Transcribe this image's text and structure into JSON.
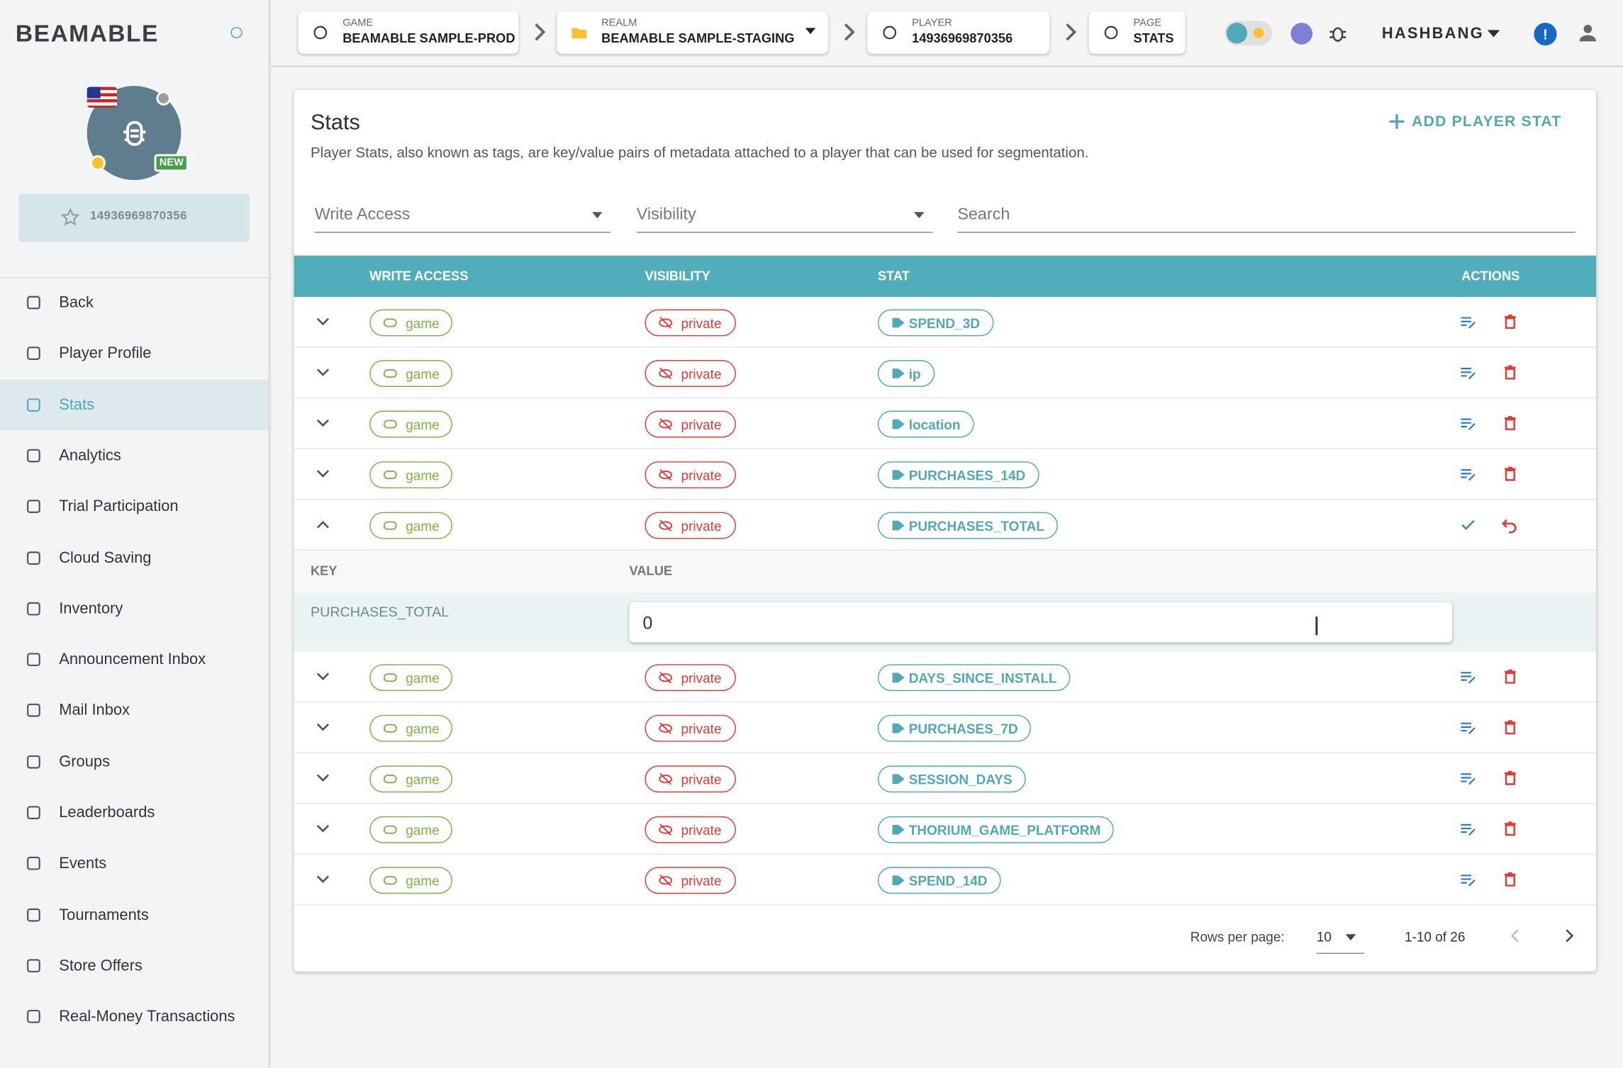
{
  "brand": "BEAMABLE",
  "sidebar": {
    "badge": "NEW",
    "player_id": "14936969870356",
    "nav": [
      {
        "label": "Back"
      },
      {
        "label": "Player Profile"
      },
      {
        "label": "Stats",
        "active": true
      },
      {
        "label": "Analytics"
      },
      {
        "label": "Trial Participation"
      },
      {
        "label": "Cloud Saving"
      },
      {
        "label": "Inventory"
      },
      {
        "label": "Announcement Inbox"
      },
      {
        "label": "Mail Inbox"
      },
      {
        "label": "Groups"
      },
      {
        "label": "Leaderboards"
      },
      {
        "label": "Events"
      },
      {
        "label": "Tournaments"
      },
      {
        "label": "Store Offers"
      },
      {
        "label": "Real-Money Transactions"
      }
    ]
  },
  "breadcrumbs": [
    {
      "label": "GAME",
      "value": "BEAMABLE SAMPLE-PROD"
    },
    {
      "label": "REALM",
      "value": "BEAMABLE SAMPLE-STAGING"
    },
    {
      "label": "PLAYER",
      "value": "14936969870356"
    },
    {
      "label": "PAGE",
      "value": "STATS"
    }
  ],
  "user": "HASHBANG",
  "panel": {
    "title": "Stats",
    "description": "Player Stats, also known as tags, are key/value pairs of metadata attached to a player that can be used for segmentation.",
    "add_button": "ADD PLAYER STAT",
    "filters": [
      "Write Access",
      "Visibility",
      "Search"
    ],
    "table": {
      "headers": [
        "WRITE ACCESS",
        "VISIBILITY",
        "STAT",
        "ACTIONS"
      ],
      "rows": [
        {
          "access": "game",
          "visibility": "private",
          "stat": "SPEND_3D"
        },
        {
          "access": "game",
          "visibility": "private",
          "stat": "ip"
        },
        {
          "access": "game",
          "visibility": "private",
          "stat": "location"
        },
        {
          "access": "game",
          "visibility": "private",
          "stat": "PURCHASES_14D"
        },
        {
          "access": "game",
          "visibility": "private",
          "stat": "PURCHASES_TOTAL",
          "expanded": true,
          "detail": {
            "key_header": "KEY",
            "value_header": "VALUE",
            "key": "PURCHASES_TOTAL",
            "value": "0"
          }
        },
        {
          "access": "game",
          "visibility": "private",
          "stat": "DAYS_SINCE_INSTALL"
        },
        {
          "access": "game",
          "visibility": "private",
          "stat": "PURCHASES_7D"
        },
        {
          "access": "game",
          "visibility": "private",
          "stat": "SESSION_DAYS"
        },
        {
          "access": "game",
          "visibility": "private",
          "stat": "THORIUM_GAME_PLATFORM"
        },
        {
          "access": "game",
          "visibility": "private",
          "stat": "SPEND_14D"
        }
      ]
    },
    "pagination": {
      "rows_label": "Rows per page:",
      "rows_per_page": 10,
      "range": "1-10 of 26"
    }
  }
}
